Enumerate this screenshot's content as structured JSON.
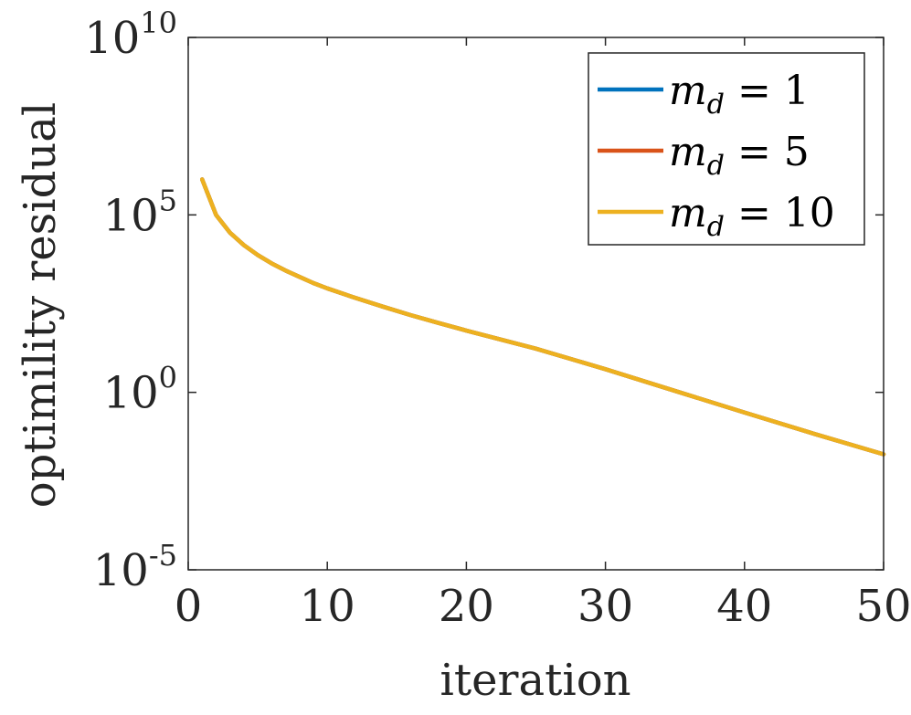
{
  "chart_data": {
    "type": "line",
    "title": "",
    "xlabel": "iteration",
    "ylabel": "optimility residual",
    "xscale": "linear",
    "yscale": "log",
    "xlim": [
      0,
      50
    ],
    "ylim": [
      1e-05,
      10000000000.0
    ],
    "x_ticks": [
      0,
      10,
      20,
      30,
      40,
      50
    ],
    "x_tick_labels": [
      "0",
      "10",
      "20",
      "30",
      "40",
      "50"
    ],
    "y_ticks": [
      1e-05,
      1.0,
      100000.0,
      10000000000.0
    ],
    "y_tick_labels": [
      {
        "base": "10",
        "exp": "-5"
      },
      {
        "base": "10",
        "exp": "0"
      },
      {
        "base": "10",
        "exp": "5"
      },
      {
        "base": "10",
        "exp": "10"
      }
    ],
    "grid": false,
    "box": true,
    "legend_position": "top-right",
    "series": [
      {
        "name": "m_d = 1",
        "legend_main": "m",
        "legend_sub": "d",
        "legend_rest": " = 1",
        "color": "#0072BD",
        "x": [
          1,
          2,
          3,
          4,
          5,
          6,
          7,
          8,
          9,
          10,
          12,
          14,
          16,
          18,
          20,
          25,
          30,
          35,
          40,
          45,
          50
        ],
        "y": [
          1000000,
          100000,
          31600,
          14100,
          7400,
          4300,
          2700,
          1800,
          1200,
          850,
          460,
          260,
          150,
          90,
          55,
          17,
          4.5,
          1.1,
          0.27,
          0.068,
          0.018
        ]
      },
      {
        "name": "m_d = 5",
        "legend_main": "m",
        "legend_sub": "d",
        "legend_rest": " = 5",
        "color": "#D95319",
        "x": [
          1,
          2,
          3,
          4,
          5,
          6,
          7,
          8,
          9,
          10,
          12,
          14,
          16,
          18,
          20,
          25,
          30,
          35,
          40,
          45,
          50
        ],
        "y": [
          1000000,
          100000,
          31600,
          14100,
          7400,
          4300,
          2700,
          1800,
          1200,
          850,
          460,
          260,
          150,
          90,
          55,
          17,
          4.5,
          1.1,
          0.27,
          0.068,
          0.018
        ]
      },
      {
        "name": "m_d = 10",
        "legend_main": "m",
        "legend_sub": "d",
        "legend_rest": " = 10",
        "color": "#EDB120",
        "x": [
          1,
          2,
          3,
          4,
          5,
          6,
          7,
          8,
          9,
          10,
          12,
          14,
          16,
          18,
          20,
          25,
          30,
          35,
          40,
          45,
          50
        ],
        "y": [
          1000000,
          100000,
          31600,
          14100,
          7400,
          4300,
          2700,
          1800,
          1200,
          850,
          460,
          260,
          150,
          90,
          55,
          17,
          4.5,
          1.1,
          0.27,
          0.068,
          0.018
        ]
      }
    ]
  }
}
